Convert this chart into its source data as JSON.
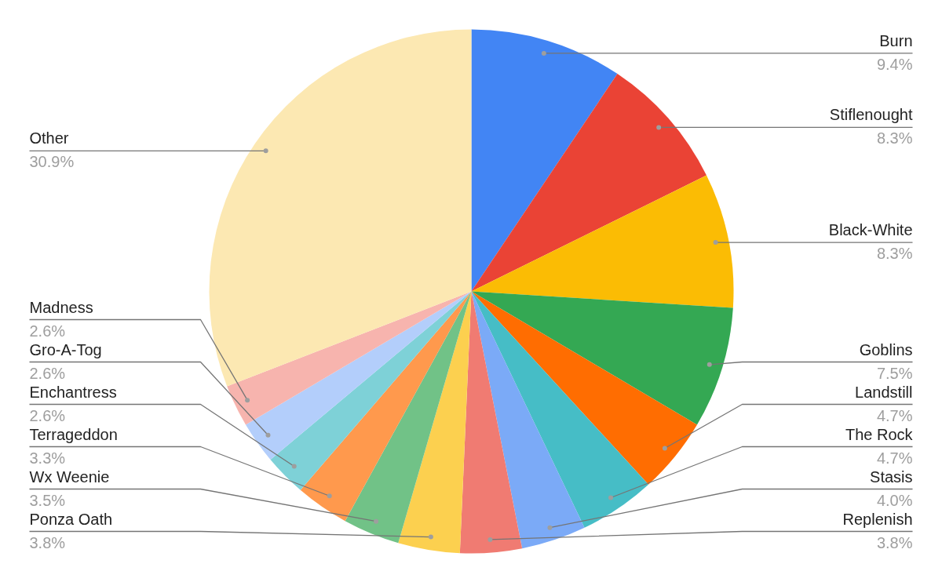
{
  "chart_data": {
    "type": "pie",
    "categories": [
      "Burn",
      "Stiflenought",
      "Black-White",
      "Goblins",
      "Landstill",
      "The Rock",
      "Stasis",
      "Replenish",
      "Ponza Oath",
      "Wx Weenie",
      "Terrageddon",
      "Enchantress",
      "Gro-A-Tog",
      "Madness",
      "Other"
    ],
    "values": [
      9.4,
      8.3,
      8.3,
      7.5,
      4.7,
      4.7,
      4.0,
      3.8,
      3.8,
      3.5,
      3.3,
      2.6,
      2.6,
      2.6,
      30.9
    ],
    "colors": [
      "#4285f4",
      "#ea4335",
      "#fbbc04",
      "#34a853",
      "#ff6d01",
      "#46bdc6",
      "#7baaf7",
      "#f07b72",
      "#fcd04f",
      "#71c287",
      "#ff994d",
      "#7ed1d7",
      "#b3cefb",
      "#f7b4ae",
      "#fce8b2"
    ],
    "value_labels": [
      "9.4%",
      "8.3%",
      "8.3%",
      "7.5%",
      "4.7%",
      "4.7%",
      "4.0%",
      "3.8%",
      "3.8%",
      "3.5%",
      "3.3%",
      "2.6%",
      "2.6%",
      "2.6%",
      "30.9%"
    ]
  }
}
